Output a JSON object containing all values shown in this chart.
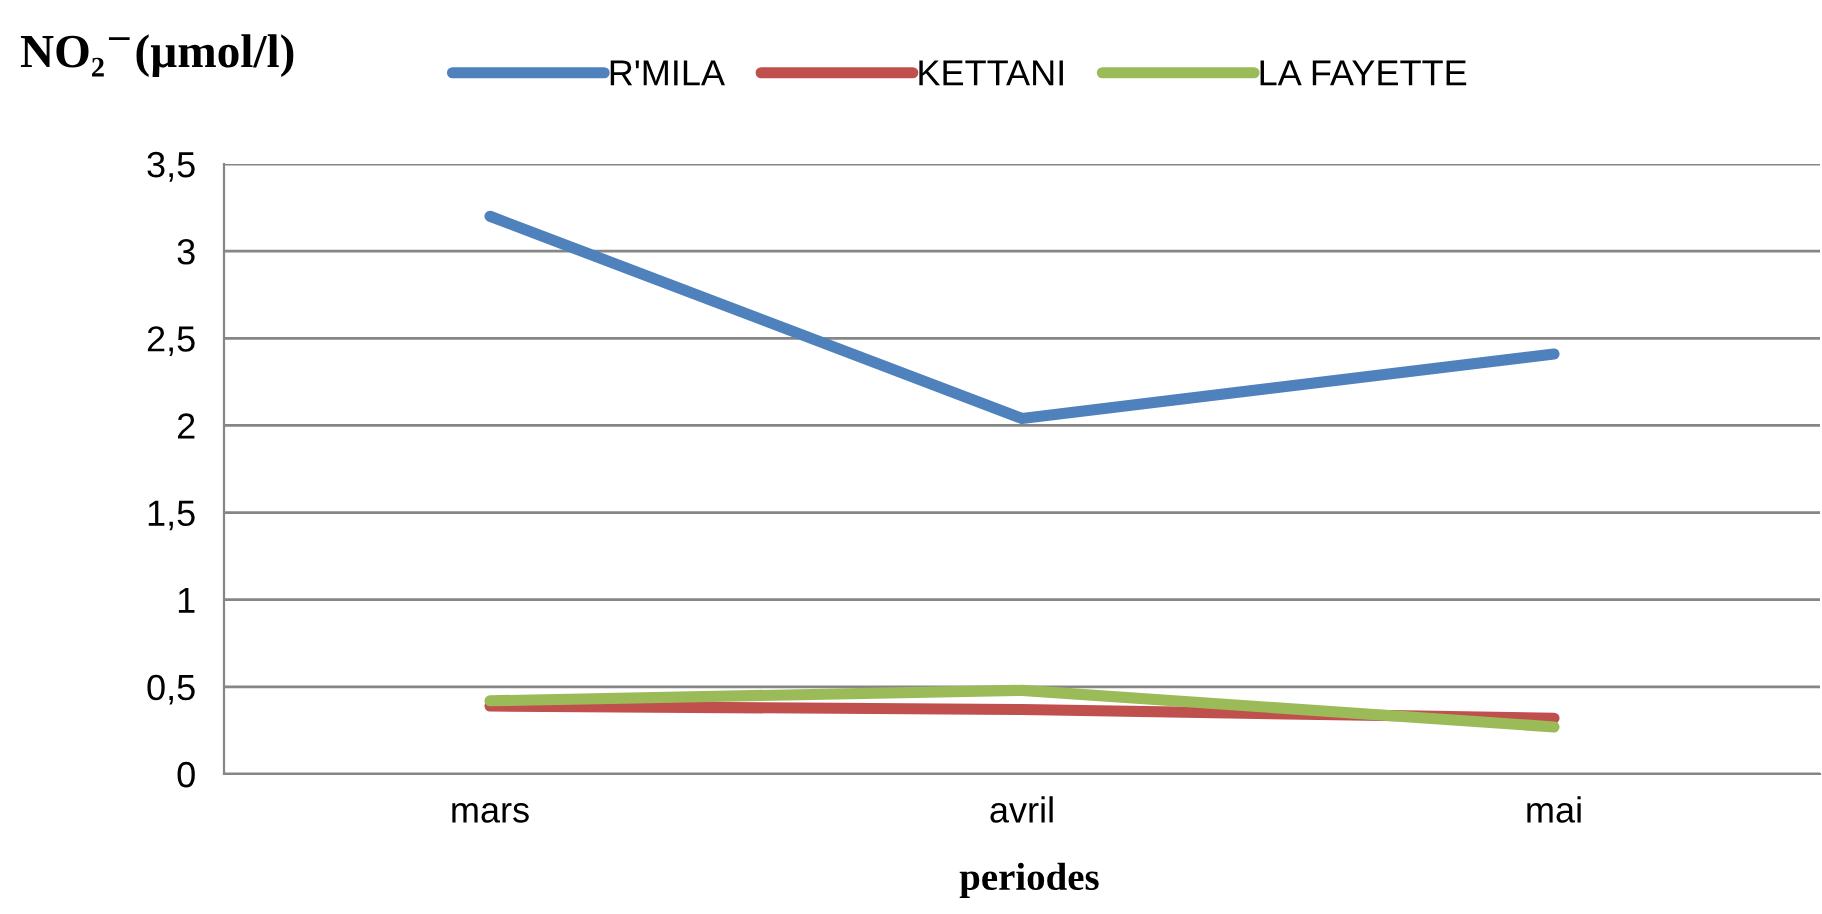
{
  "chart_data": {
    "type": "line",
    "title": "NO₂$^{−}$(µmol/l)",
    "xlabel": "periodes",
    "categories": [
      "mars",
      "avril",
      "mai"
    ],
    "series": [
      {
        "name": "R'MILA",
        "color": "#4f81bd",
        "values": [
          3.2,
          2.04,
          2.41
        ]
      },
      {
        "name": "KETTANI",
        "color": "#c0504d",
        "values": [
          0.39,
          0.37,
          0.32
        ]
      },
      {
        "name": "LA FAYETTE",
        "color": "#9bbb59",
        "values": [
          0.42,
          0.48,
          0.27
        ]
      }
    ],
    "ylim": [
      0,
      3.5
    ],
    "yticks": [
      0,
      {
        "value": 0.5,
        "label": "0,5"
      },
      1,
      {
        "value": 1.5,
        "label": "1,5"
      },
      2,
      {
        "value": 2.5,
        "label": "2,5"
      },
      3,
      {
        "value": 3.5,
        "label": "3,5"
      }
    ],
    "grid": "y",
    "legend": "top",
    "marker": "none",
    "line_style": "solid"
  }
}
